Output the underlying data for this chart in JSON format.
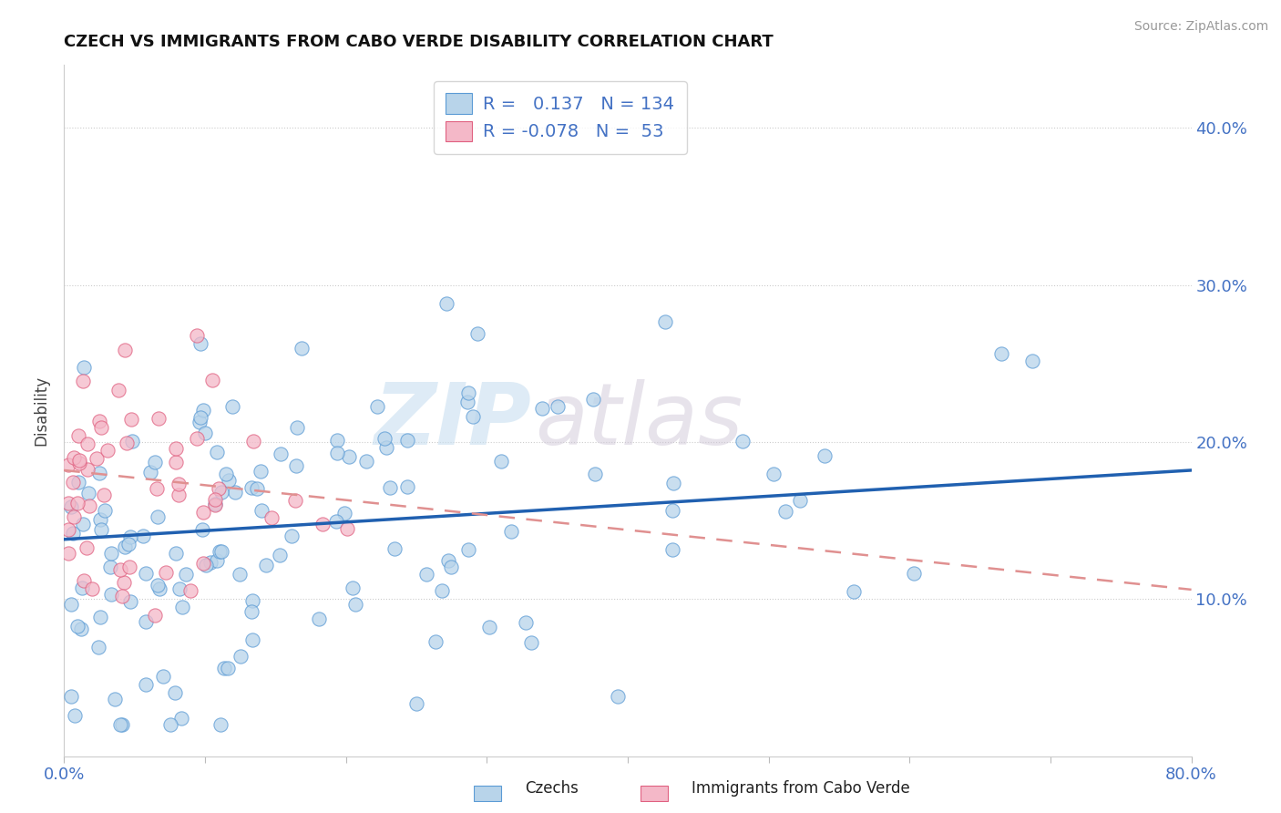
{
  "title": "CZECH VS IMMIGRANTS FROM CABO VERDE DISABILITY CORRELATION CHART",
  "source": "Source: ZipAtlas.com",
  "ylabel": "Disability",
  "ytick_vals": [
    0.1,
    0.2,
    0.3,
    0.4
  ],
  "xlim": [
    0.0,
    0.8
  ],
  "ylim": [
    0.0,
    0.44
  ],
  "R_czech": 0.137,
  "N_czech": 134,
  "R_cabo": -0.078,
  "N_cabo": 53,
  "color_czech_fill": "#b8d4ea",
  "color_czech_edge": "#5b9bd5",
  "color_cabo_fill": "#f4b8c8",
  "color_cabo_edge": "#e06080",
  "color_line_czech": "#2060b0",
  "color_line_cabo": "#e09090",
  "watermark_zip": "ZIP",
  "watermark_atlas": "atlas",
  "legend_label_czech": "Czechs",
  "legend_label_cabo": "Immigrants from Cabo Verde"
}
